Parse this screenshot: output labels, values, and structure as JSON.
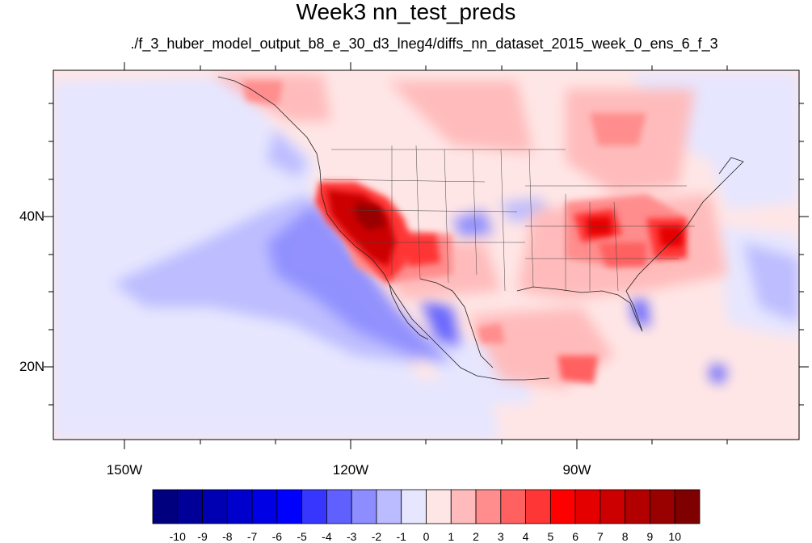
{
  "title": "Week3 nn_test_preds",
  "subtitle": "./f_3_huber_model_output_b8_e_30_d3_lneg4/diffs_nn_dataset_2015_week_0_ens_6_f_3",
  "lat_labels": [
    "40N",
    "20N"
  ],
  "lon_labels": [
    "150W",
    "120W",
    "90W"
  ],
  "colorbar": {
    "labels": [
      "-10",
      "-9",
      "-8",
      "-7",
      "-6",
      "-5",
      "-4",
      "-3",
      "-2",
      "-1",
      "0",
      "1",
      "2",
      "3",
      "4",
      "5",
      "6",
      "7",
      "8",
      "9",
      "10"
    ],
    "colors": [
      "#00007f",
      "#000099",
      "#0000b2",
      "#0000cc",
      "#0000e5",
      "#0000ff",
      "#3636ff",
      "#6060ff",
      "#8d8dff",
      "#bbbbff",
      "#e6e6ff",
      "#ffe6e6",
      "#ffbbbb",
      "#ff8d8d",
      "#ff6060",
      "#ff3636",
      "#ff0000",
      "#e50000",
      "#cc0000",
      "#b20000",
      "#990000",
      "#7f0000"
    ]
  }
}
